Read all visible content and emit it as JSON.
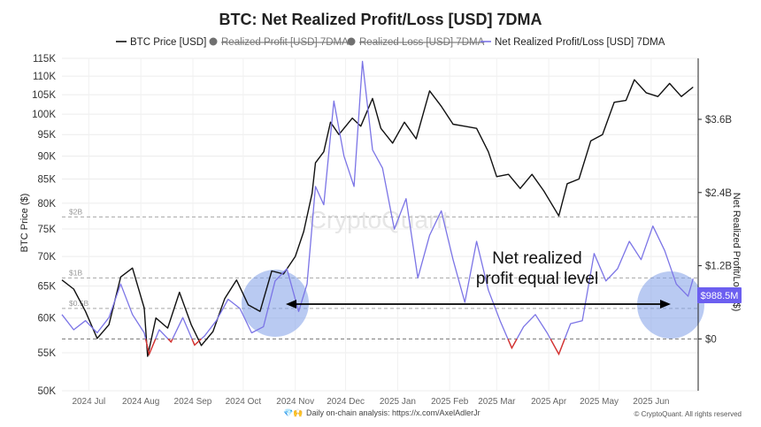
{
  "chart_data": {
    "type": "line",
    "title": "BTC: Net Realized Profit/Loss [USD] 7DMA",
    "ylabel": "BTC Price ($)",
    "y2label": "Net Realized Profit/Loss ($)",
    "scale_left": "log",
    "ylim": [
      50000,
      115000
    ],
    "y2lim": [
      -850000000,
      4600000000
    ],
    "yticks": [
      50000,
      55000,
      60000,
      65000,
      70000,
      75000,
      80000,
      85000,
      90000,
      95000,
      100000,
      105000,
      110000,
      115000
    ],
    "ytick_labels": [
      "50K",
      "55K",
      "60K",
      "65K",
      "70K",
      "75K",
      "80K",
      "85K",
      "90K",
      "95K",
      "100K",
      "105K",
      "110K",
      "115K"
    ],
    "y2ticks": [
      0,
      1200000000,
      2400000000,
      3600000000
    ],
    "y2tick_labels": [
      "$0",
      "$1.2B",
      "$2.4B",
      "$3.6B"
    ],
    "xlim": [
      "2024-06-15",
      "2025-06-29"
    ],
    "xticks": [
      "2024-07-01",
      "2024-08-01",
      "2024-09-01",
      "2024-10-01",
      "2024-11-01",
      "2024-12-01",
      "2025-01-01",
      "2025-02-01",
      "2025-03-01",
      "2025-04-01",
      "2025-05-01",
      "2025-06-01"
    ],
    "xtick_labels": [
      "2024 Jul",
      "2024 Aug",
      "2024 Sep",
      "2024 Oct",
      "2024 Nov",
      "2024 Dec",
      "2025 Jan",
      "2025 Feb",
      "2025 Mar",
      "2025 Apr",
      "2025 May",
      "2025 Jun"
    ],
    "grid": true,
    "legend": [
      {
        "label": "BTC Price [USD]",
        "color": "#111111",
        "hidden": false
      },
      {
        "label": "Realized Profit [USD] 7DMA",
        "color": "#707070",
        "hidden": true
      },
      {
        "label": "Realized Loss [USD] 7DMA",
        "color": "#707070",
        "hidden": true
      },
      {
        "label": "Net Realized Profit/Loss [USD] 7DMA",
        "color": "#7b74e6",
        "hidden": false
      }
    ],
    "reference_lines": [
      {
        "label": "$2B",
        "value": 2000000000
      },
      {
        "label": "$1B",
        "value": 1000000000
      },
      {
        "label": "$0.5B",
        "value": 500000000
      },
      {
        "label": "",
        "value": 0
      }
    ],
    "last_value_label": "$988.5M",
    "series": [
      {
        "name": "BTC Price [USD]",
        "axis": "left",
        "color": "#111111",
        "x": [
          "2024-06-15",
          "2024-06-22",
          "2024-06-29",
          "2024-07-06",
          "2024-07-13",
          "2024-07-20",
          "2024-07-27",
          "2024-08-03",
          "2024-08-05",
          "2024-08-10",
          "2024-08-17",
          "2024-08-24",
          "2024-08-31",
          "2024-09-06",
          "2024-09-13",
          "2024-09-20",
          "2024-09-27",
          "2024-10-04",
          "2024-10-11",
          "2024-10-18",
          "2024-10-25",
          "2024-11-01",
          "2024-11-06",
          "2024-11-11",
          "2024-11-13",
          "2024-11-18",
          "2024-11-22",
          "2024-11-27",
          "2024-12-05",
          "2024-12-10",
          "2024-12-17",
          "2024-12-22",
          "2024-12-29",
          "2025-01-05",
          "2025-01-12",
          "2025-01-20",
          "2025-01-27",
          "2025-02-03",
          "2025-02-10",
          "2025-02-17",
          "2025-02-24",
          "2025-03-01",
          "2025-03-08",
          "2025-03-15",
          "2025-03-22",
          "2025-03-29",
          "2025-04-07",
          "2025-04-12",
          "2025-04-19",
          "2025-04-26",
          "2025-05-03",
          "2025-05-10",
          "2025-05-17",
          "2025-05-22",
          "2025-05-29",
          "2025-06-05",
          "2025-06-12",
          "2025-06-19",
          "2025-06-26"
        ],
        "values": [
          66000,
          64500,
          61000,
          57000,
          59000,
          66500,
          68000,
          61500,
          54500,
          60000,
          58500,
          64000,
          59000,
          56000,
          58000,
          63000,
          66000,
          62000,
          61000,
          67500,
          67000,
          70000,
          74500,
          82000,
          88500,
          91000,
          98000,
          95000,
          99000,
          97000,
          104000,
          96500,
          93000,
          98000,
          94000,
          106000,
          102000,
          97500,
          97000,
          96500,
          91000,
          85500,
          86000,
          83000,
          86000,
          82500,
          77500,
          84000,
          85000,
          93500,
          95000,
          103000,
          103500,
          109000,
          105500,
          104500,
          108000,
          104500,
          107000
        ]
      },
      {
        "name": "Net Realized Profit/Loss [USD] 7DMA",
        "axis": "right",
        "color": "#7b74e6",
        "x": [
          "2024-06-15",
          "2024-06-22",
          "2024-06-29",
          "2024-07-06",
          "2024-07-13",
          "2024-07-20",
          "2024-07-27",
          "2024-08-03",
          "2024-08-06",
          "2024-08-12",
          "2024-08-19",
          "2024-08-26",
          "2024-09-02",
          "2024-09-08",
          "2024-09-15",
          "2024-09-22",
          "2024-09-29",
          "2024-10-06",
          "2024-10-13",
          "2024-10-20",
          "2024-10-27",
          "2024-11-03",
          "2024-11-08",
          "2024-11-13",
          "2024-11-18",
          "2024-11-24",
          "2024-11-30",
          "2024-12-06",
          "2024-12-11",
          "2024-12-17",
          "2024-12-23",
          "2024-12-30",
          "2025-01-06",
          "2025-01-13",
          "2025-01-20",
          "2025-01-27",
          "2025-02-03",
          "2025-02-10",
          "2025-02-17",
          "2025-02-24",
          "2025-03-03",
          "2025-03-10",
          "2025-03-17",
          "2025-03-24",
          "2025-03-31",
          "2025-04-07",
          "2025-04-14",
          "2025-04-21",
          "2025-04-28",
          "2025-05-05",
          "2025-05-12",
          "2025-05-19",
          "2025-05-26",
          "2025-06-02",
          "2025-06-09",
          "2025-06-16",
          "2025-06-23",
          "2025-06-26"
        ],
        "values": [
          400000000,
          150000000,
          300000000,
          100000000,
          350000000,
          900000000,
          400000000,
          100000000,
          -250000000,
          150000000,
          -50000000,
          350000000,
          -100000000,
          50000000,
          300000000,
          650000000,
          500000000,
          100000000,
          200000000,
          950000000,
          1150000000,
          450000000,
          900000000,
          2500000000,
          2200000000,
          3900000000,
          3000000000,
          2500000000,
          4550000000,
          3100000000,
          2800000000,
          1800000000,
          2300000000,
          1000000000,
          1700000000,
          2100000000,
          1300000000,
          600000000,
          1600000000,
          800000000,
          300000000,
          -150000000,
          200000000,
          400000000,
          100000000,
          -250000000,
          250000000,
          300000000,
          1400000000,
          950000000,
          1150000000,
          1600000000,
          1300000000,
          1850000000,
          1450000000,
          900000000,
          700000000,
          988500000
        ]
      }
    ]
  },
  "annotation": {
    "line1": "Net realized",
    "line2": "profit equal level"
  },
  "watermark": "CryptoQuant",
  "footer": {
    "emoji": "💎🙌",
    "text": "Daily on-chain analysis: https://x.com/AxelAdlerJr"
  },
  "copyright": "© CryptoQuant. All rights reserved",
  "colors": {
    "price": "#111111",
    "net": "#7b74e6",
    "loss": "#d9342b",
    "highlight": "#7f9ee8",
    "badge": "#6c5ff0"
  }
}
